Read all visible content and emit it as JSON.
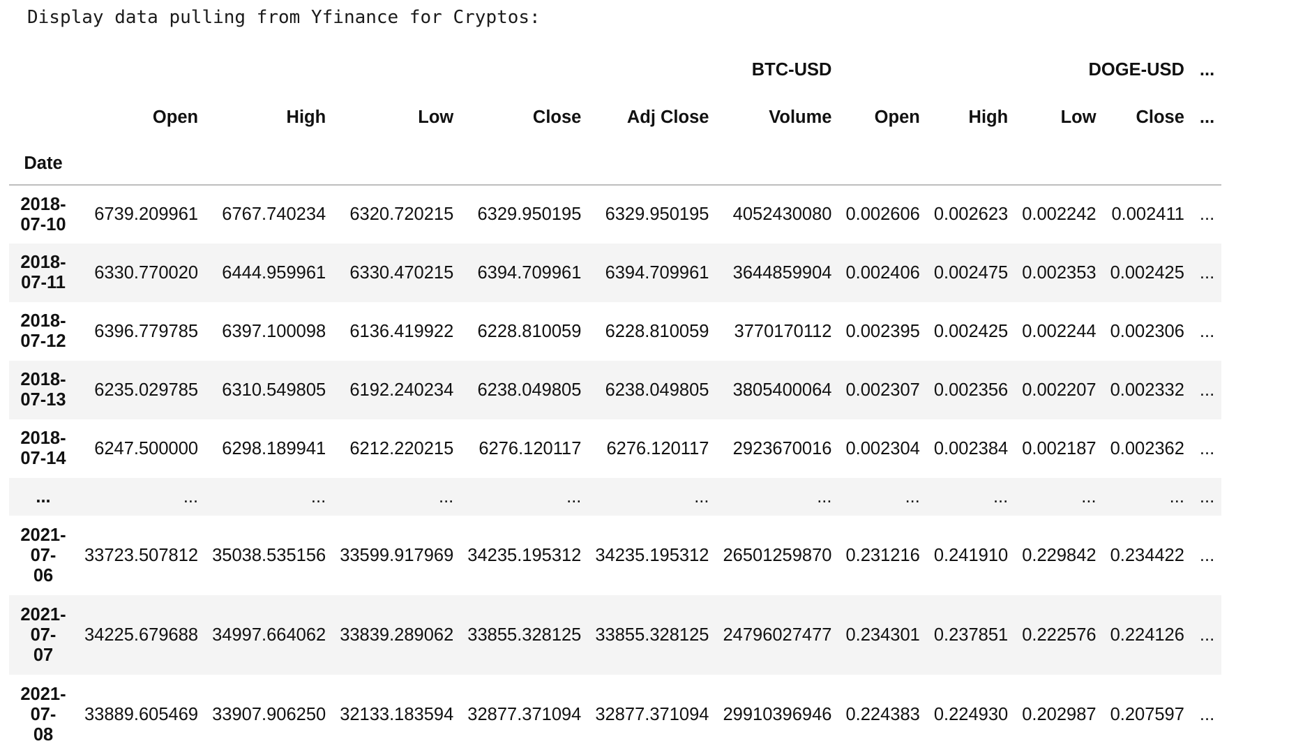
{
  "output_text": "Display data pulling from Yfinance for Cryptos:",
  "table": {
    "index_name": "Date",
    "ticker_header": {
      "btc": "BTC-USD",
      "doge": "DOGE-USD",
      "more": "..."
    },
    "columns": [
      "Open",
      "High",
      "Low",
      "Close",
      "Adj Close",
      "Volume",
      "Open",
      "High",
      "Low",
      "Close",
      "..."
    ],
    "rows": [
      {
        "date": "2018-\n07-10",
        "values": [
          "6739.209961",
          "6767.740234",
          "6320.720215",
          "6329.950195",
          "6329.950195",
          "4052430080",
          "0.002606",
          "0.002623",
          "0.002242",
          "0.002411",
          "..."
        ]
      },
      {
        "date": "2018-\n07-11",
        "values": [
          "6330.770020",
          "6444.959961",
          "6330.470215",
          "6394.709961",
          "6394.709961",
          "3644859904",
          "0.002406",
          "0.002475",
          "0.002353",
          "0.002425",
          "..."
        ]
      },
      {
        "date": "2018-\n07-12",
        "values": [
          "6396.779785",
          "6397.100098",
          "6136.419922",
          "6228.810059",
          "6228.810059",
          "3770170112",
          "0.002395",
          "0.002425",
          "0.002244",
          "0.002306",
          "..."
        ]
      },
      {
        "date": "2018-\n07-13",
        "values": [
          "6235.029785",
          "6310.549805",
          "6192.240234",
          "6238.049805",
          "6238.049805",
          "3805400064",
          "0.002307",
          "0.002356",
          "0.002207",
          "0.002332",
          "..."
        ]
      },
      {
        "date": "2018-\n07-14",
        "values": [
          "6247.500000",
          "6298.189941",
          "6212.220215",
          "6276.120117",
          "6276.120117",
          "2923670016",
          "0.002304",
          "0.002384",
          "0.002187",
          "0.002362",
          "..."
        ]
      },
      {
        "date": "...",
        "values": [
          "...",
          "...",
          "...",
          "...",
          "...",
          "...",
          "...",
          "...",
          "...",
          "...",
          "..."
        ]
      },
      {
        "date": "2021-\n07-\n06",
        "values": [
          "33723.507812",
          "35038.535156",
          "33599.917969",
          "34235.195312",
          "34235.195312",
          "26501259870",
          "0.231216",
          "0.241910",
          "0.229842",
          "0.234422",
          "..."
        ]
      },
      {
        "date": "2021-\n07-\n07",
        "values": [
          "34225.679688",
          "34997.664062",
          "33839.289062",
          "33855.328125",
          "33855.328125",
          "24796027477",
          "0.234301",
          "0.237851",
          "0.222576",
          "0.224126",
          "..."
        ]
      },
      {
        "date": "2021-\n07-\n08",
        "values": [
          "33889.605469",
          "33907.906250",
          "32133.183594",
          "32877.371094",
          "32877.371094",
          "29910396946",
          "0.224383",
          "0.224930",
          "0.202987",
          "0.207597",
          "..."
        ]
      }
    ]
  }
}
